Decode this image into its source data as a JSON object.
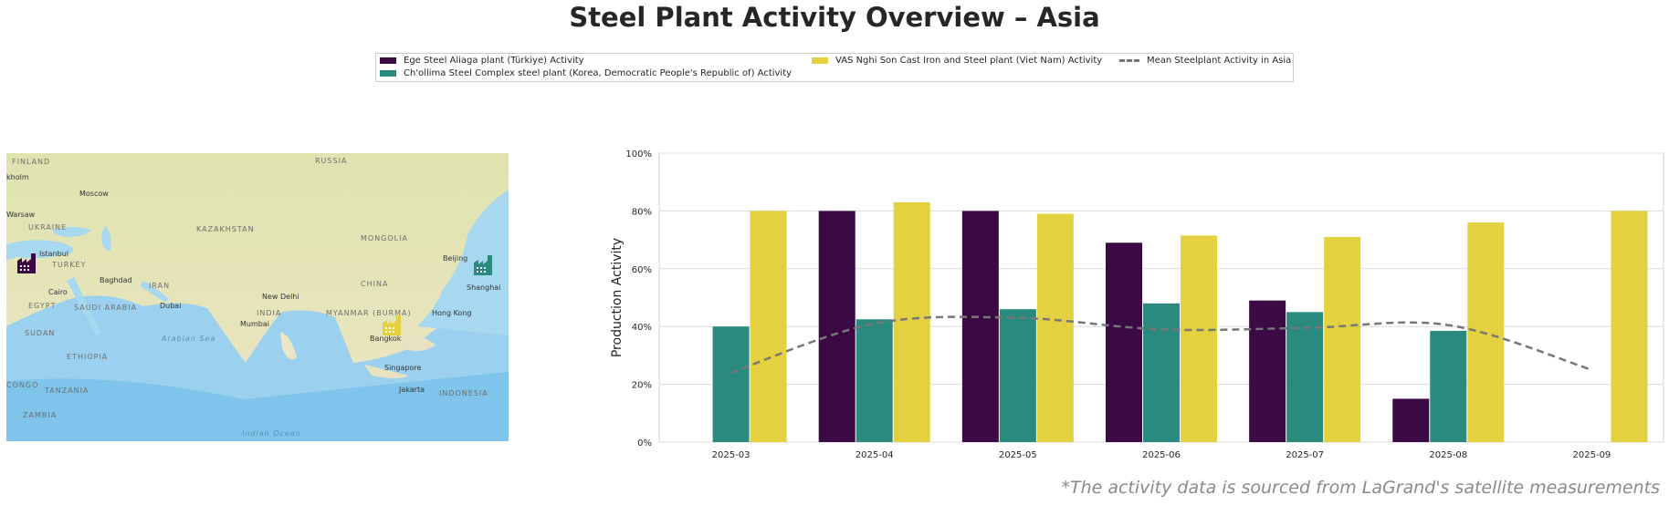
{
  "title": "Steel Plant Activity Overview – Asia",
  "footnote": "*The activity data is sourced from LaGrand's satellite measurements",
  "colors": {
    "ege": "#3b0a45",
    "chollima": "#2b8a7e",
    "vas": "#e3d13f",
    "mean": "#777777"
  },
  "legend": [
    {
      "label": "Ege Steel Aliaga plant (Türkiye) Activity",
      "color": "#3b0a45",
      "kind": "patch"
    },
    {
      "label": "Ch'ollima Steel Complex steel plant (Korea, Democratic People's Republic of) Activity",
      "color": "#2b8a7e",
      "kind": "patch"
    },
    {
      "label": "VAS Nghi Son Cast Iron and Steel plant (Viet Nam) Activity",
      "color": "#e3d13f",
      "kind": "patch"
    },
    {
      "label": "Mean Steelplant Activity in Asia",
      "color": "#777777",
      "kind": "dashed-line"
    }
  ],
  "map": {
    "places": [
      "FINLAND",
      "kholm",
      "Moscow",
      "RUSSIA",
      "Warsaw",
      "UKRAINE",
      "KAZAKHSTAN",
      "MONGOLIA",
      "Istanbul",
      "TURKEY",
      "Beijing",
      "Baghdad",
      "IRAN",
      "CHINA",
      "Shanghai",
      "Cairo",
      "EGYPT",
      "SAUDI ARABIA",
      "Dubai",
      "New Delhi",
      "INDIA",
      "MYANMAR (BURMA)",
      "Hong Kong",
      "Mumbai",
      "SUDAN",
      "Arabian Sea",
      "Bangkok",
      "ETHIOPIA",
      "Singapore",
      "TANZANIA",
      "Jakarta",
      "INDONESIA",
      "ZAMBIA",
      "Indian Ocean",
      "CONGO"
    ],
    "markers": [
      {
        "plant": "Ege Steel Aliaga plant (Türkiye)",
        "icon": "factory-icon",
        "color": "#3b0a45"
      },
      {
        "plant": "Ch'ollima Steel Complex steel plant",
        "icon": "factory-icon",
        "color": "#2b8a7e"
      },
      {
        "plant": "VAS Nghi Son Cast Iron and Steel plant",
        "icon": "factory-icon",
        "color": "#e3d13f"
      }
    ]
  },
  "chart_data": {
    "type": "bar",
    "title": "",
    "xlabel": "",
    "ylabel": "Production Activity",
    "ylim": [
      0,
      100
    ],
    "yticks": [
      "0%",
      "20%",
      "40%",
      "60%",
      "80%",
      "100%"
    ],
    "grid": "horizontal",
    "categories": [
      "2025-03",
      "2025-04",
      "2025-05",
      "2025-06",
      "2025-07",
      "2025-08",
      "2025-09"
    ],
    "series": [
      {
        "name": "Ege Steel Aliaga plant (Türkiye) Activity",
        "color": "#3b0a45",
        "values": [
          null,
          80,
          80,
          69,
          49,
          15,
          null
        ]
      },
      {
        "name": "Ch'ollima Steel Complex steel plant (Korea, Democratic People's Republic of) Activity",
        "color": "#2b8a7e",
        "values": [
          40,
          42.5,
          46,
          48,
          45,
          38.5,
          null
        ]
      },
      {
        "name": "VAS Nghi Son Cast Iron and Steel plant (Viet Nam) Activity",
        "color": "#e3d13f",
        "values": [
          80,
          83,
          79,
          71.5,
          71,
          76,
          80
        ]
      }
    ],
    "mean_line": {
      "name": "Mean Steelplant Activity in Asia",
      "color": "#777777",
      "style": "dashed",
      "values": [
        24,
        41,
        43,
        39,
        39.5,
        40.5,
        25
      ]
    }
  }
}
